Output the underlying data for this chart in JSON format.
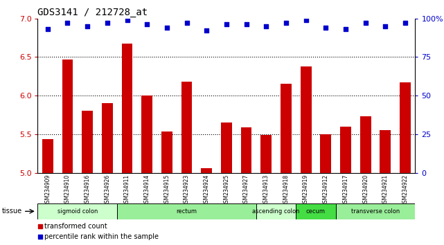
{
  "title": "GDS3141 / 212728_at",
  "samples": [
    "GSM234909",
    "GSM234910",
    "GSM234916",
    "GSM234926",
    "GSM234911",
    "GSM234914",
    "GSM234915",
    "GSM234923",
    "GSM234924",
    "GSM234925",
    "GSM234927",
    "GSM234913",
    "GSM234918",
    "GSM234919",
    "GSM234912",
    "GSM234917",
    "GSM234920",
    "GSM234921",
    "GSM234922"
  ],
  "bar_values": [
    5.44,
    6.47,
    5.8,
    5.9,
    6.67,
    6.0,
    5.53,
    6.18,
    5.06,
    5.65,
    5.59,
    5.49,
    6.15,
    6.38,
    5.5,
    5.6,
    5.73,
    5.55,
    6.17
  ],
  "dot_values": [
    93,
    97,
    95,
    97,
    99,
    96,
    94,
    97,
    92,
    96,
    96,
    95,
    97,
    99,
    94,
    93,
    97,
    95,
    97
  ],
  "bar_color": "#cc0000",
  "dot_color": "#0000cc",
  "ylim_left": [
    5.0,
    7.0
  ],
  "ylim_right": [
    0,
    100
  ],
  "yticks_left": [
    5.0,
    5.5,
    6.0,
    6.5,
    7.0
  ],
  "yticks_right": [
    0,
    25,
    50,
    75,
    100
  ],
  "hlines": [
    5.5,
    6.0,
    6.5
  ],
  "tissue_groups": [
    {
      "label": "sigmoid colon",
      "start": 0,
      "end": 4,
      "color": "#ccffcc"
    },
    {
      "label": "rectum",
      "start": 4,
      "end": 11,
      "color": "#99ee99"
    },
    {
      "label": "ascending colon",
      "start": 11,
      "end": 13,
      "color": "#ccffcc"
    },
    {
      "label": "cecum",
      "start": 13,
      "end": 15,
      "color": "#44dd44"
    },
    {
      "label": "transverse colon",
      "start": 15,
      "end": 19,
      "color": "#99ee99"
    }
  ],
  "legend_labels": [
    "transformed count",
    "percentile rank within the sample"
  ],
  "tick_area_color": "#c8c8c8"
}
